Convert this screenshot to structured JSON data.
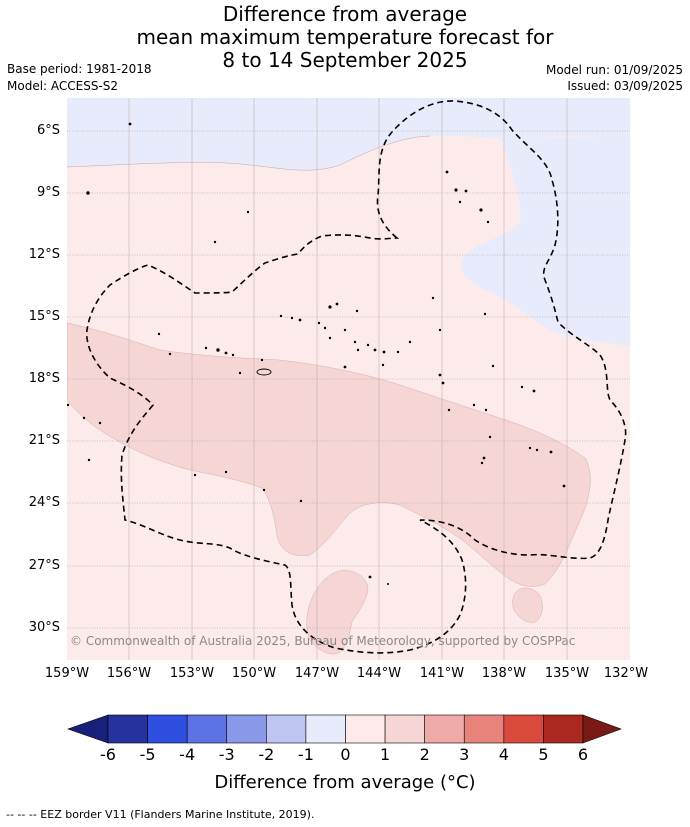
{
  "title": {
    "line1": "Difference from average",
    "line2": "mean maximum temperature forecast for",
    "line3": "8 to 14 September 2025"
  },
  "meta": {
    "base_period": "Base period: 1981-2018",
    "model": "Model: ACCESS-S2",
    "model_run": "Model run: 01/09/2025",
    "issued": "Issued: 03/09/2025"
  },
  "axes": {
    "latitudes": [
      "6°S",
      "9°S",
      "12°S",
      "15°S",
      "18°S",
      "21°S",
      "24°S",
      "27°S",
      "30°S"
    ],
    "longitudes": [
      "159°W",
      "156°W",
      "153°W",
      "150°W",
      "147°W",
      "144°W",
      "141°W",
      "138°W",
      "135°W",
      "132°W"
    ]
  },
  "map": {
    "copyright": "© Commonwealth of Australia 2025, Bureau of Meteorology, supported by COSPPac",
    "regions": [
      {
        "category": "-1 to 0",
        "color": "#e8ebfb"
      },
      {
        "category": "0 to 1",
        "color": "#fcebea"
      },
      {
        "category": "1 to 2",
        "color": "#f5d6d5"
      }
    ]
  },
  "colorbar": {
    "label": "Difference from average (°C)",
    "ticks": [
      "-6",
      "-5",
      "-4",
      "-3",
      "-2",
      "-1",
      "0",
      "1",
      "2",
      "3",
      "4",
      "5",
      "6"
    ],
    "colors": [
      "#26339f",
      "#2f4fe0",
      "#5e73e3",
      "#8a98ea",
      "#bfc5f3",
      "#e8ebfb",
      "#fcebea",
      "#f5d6d5",
      "#efaaa8",
      "#e8837c",
      "#d94a3d",
      "#ab2820"
    ],
    "under_color": "#17207a",
    "over_color": "#7a1a16"
  },
  "footer": {
    "legend_text": "--  --  -- EEZ border V11 (Flanders Marine Institute, 2019)."
  }
}
